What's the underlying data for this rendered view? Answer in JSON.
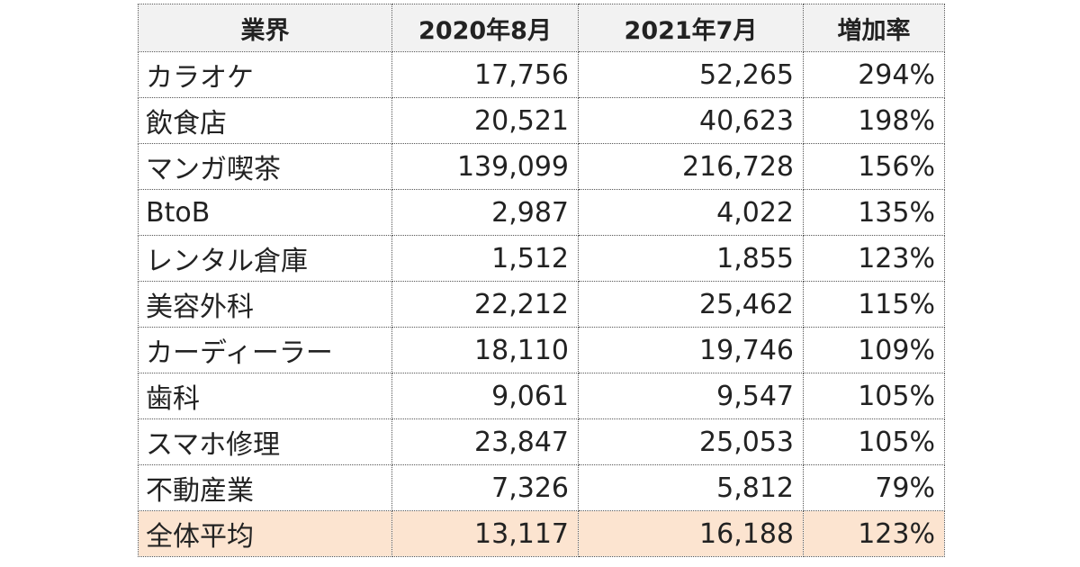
{
  "table": {
    "headers": [
      "業界",
      "2020年8月",
      "2021年7月",
      "増加率"
    ],
    "rows": [
      {
        "industry": "カラオケ",
        "aug2020": "17,756",
        "jul2021": "52,265",
        "rate": "294%"
      },
      {
        "industry": "飲食店",
        "aug2020": "20,521",
        "jul2021": "40,623",
        "rate": "198%"
      },
      {
        "industry": "マンガ喫茶",
        "aug2020": "139,099",
        "jul2021": "216,728",
        "rate": "156%"
      },
      {
        "industry": "BtoB",
        "aug2020": "2,987",
        "jul2021": "4,022",
        "rate": "135%"
      },
      {
        "industry": "レンタル倉庫",
        "aug2020": "1,512",
        "jul2021": "1,855",
        "rate": "123%"
      },
      {
        "industry": "美容外科",
        "aug2020": "22,212",
        "jul2021": "25,462",
        "rate": "115%"
      },
      {
        "industry": "カーディーラー",
        "aug2020": "18,110",
        "jul2021": "19,746",
        "rate": "109%"
      },
      {
        "industry": "歯科",
        "aug2020": "9,061",
        "jul2021": "9,547",
        "rate": "105%"
      },
      {
        "industry": "スマホ修理",
        "aug2020": "23,847",
        "jul2021": "25,053",
        "rate": "105%"
      },
      {
        "industry": "不動産業",
        "aug2020": "7,326",
        "jul2021": "5,812",
        "rate": "79%"
      }
    ],
    "average": {
      "industry": "全体平均",
      "aug2020": "13,117",
      "jul2021": "16,188",
      "rate": "123%"
    }
  },
  "colors": {
    "header_bg": "#f2f2f2",
    "average_row_bg": "#fce4d0",
    "border": "#555555"
  }
}
